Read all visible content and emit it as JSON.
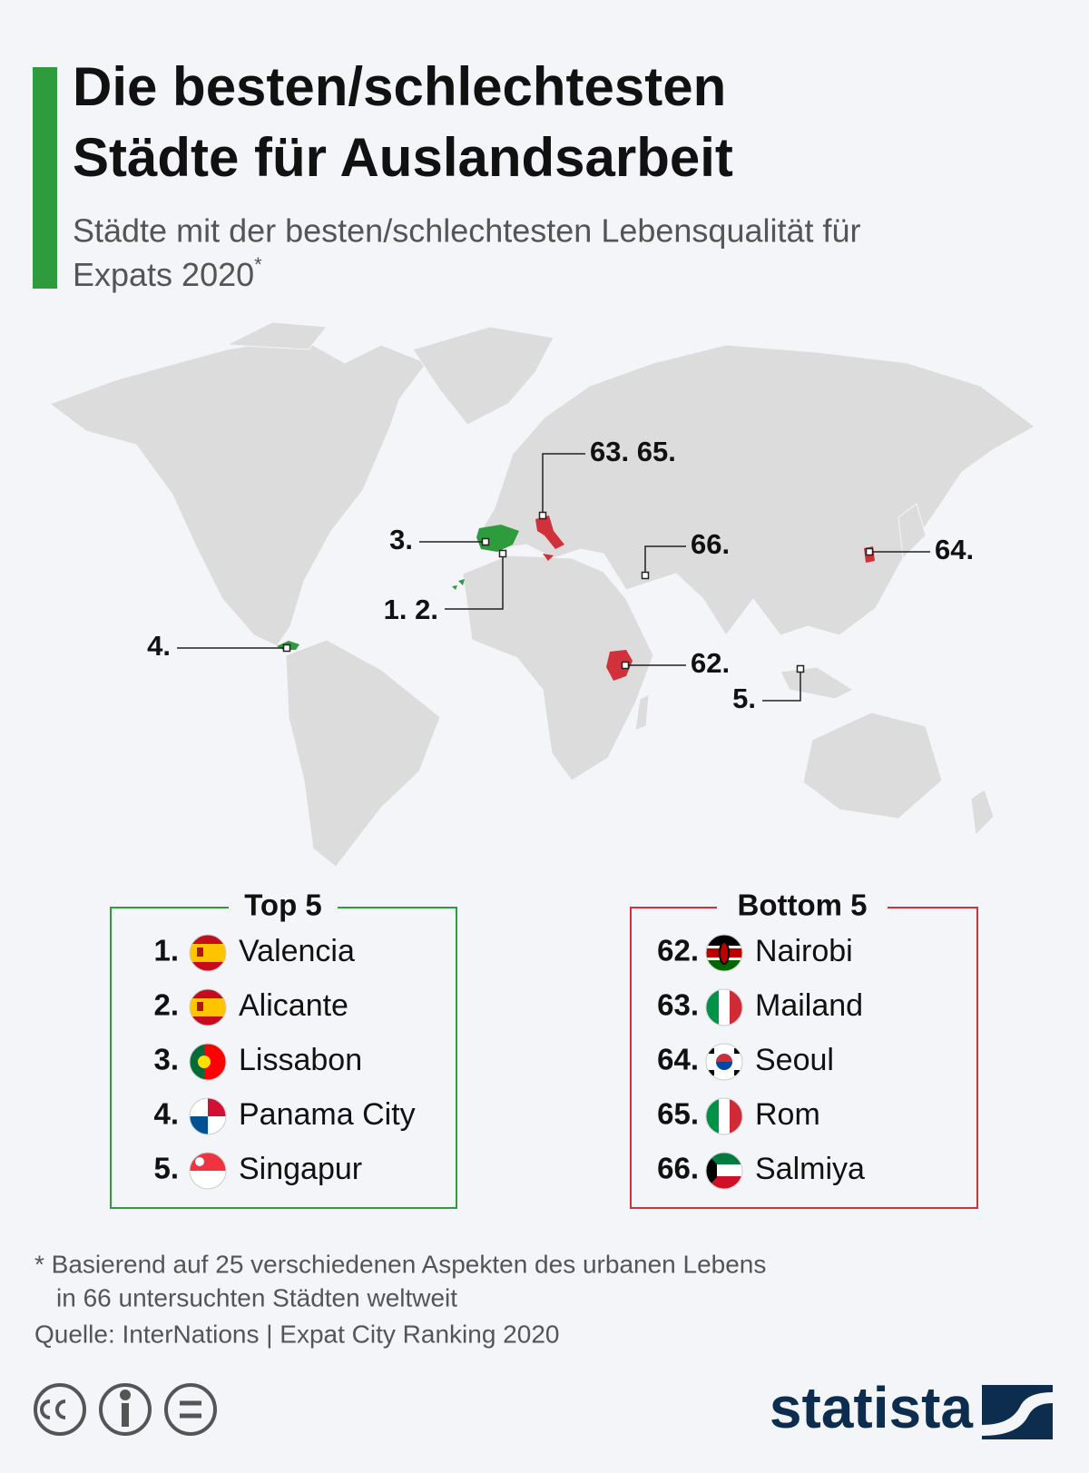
{
  "header": {
    "title_lines": [
      "Die besten/schlechtesten",
      "Städte für Auslandsarbeit"
    ],
    "subtitle_lines": [
      "Städte mit der besten/schlechtesten Lebensqualität für",
      "Expats 2020"
    ],
    "subtitle_marker": "*"
  },
  "map": {
    "labels": [
      "63. 65.",
      "3.",
      "1. 2.",
      "66.",
      "64.",
      "4.",
      "62.",
      "5."
    ]
  },
  "top5": {
    "title": "Top 5",
    "rows": [
      {
        "rank": "1.",
        "city": "Valencia"
      },
      {
        "rank": "2.",
        "city": "Alicante"
      },
      {
        "rank": "3.",
        "city": "Lissabon"
      },
      {
        "rank": "4.",
        "city": "Panama City"
      },
      {
        "rank": "5.",
        "city": "Singapur"
      }
    ]
  },
  "bottom5": {
    "title": "Bottom 5",
    "rows": [
      {
        "rank": "62.",
        "city": "Nairobi"
      },
      {
        "rank": "63.",
        "city": "Mailand"
      },
      {
        "rank": "64.",
        "city": "Seoul"
      },
      {
        "rank": "65.",
        "city": "Rom"
      },
      {
        "rank": "66.",
        "city": "Salmiya"
      }
    ]
  },
  "footnote": {
    "lines": [
      "* Basierend auf 25 verschiedenen Aspekten des urbanen Lebens",
      "in 66 untersuchten Städten weltweit"
    ]
  },
  "source": "Quelle: InterNations | Expat City Ranking 2020",
  "brand": "statista"
}
